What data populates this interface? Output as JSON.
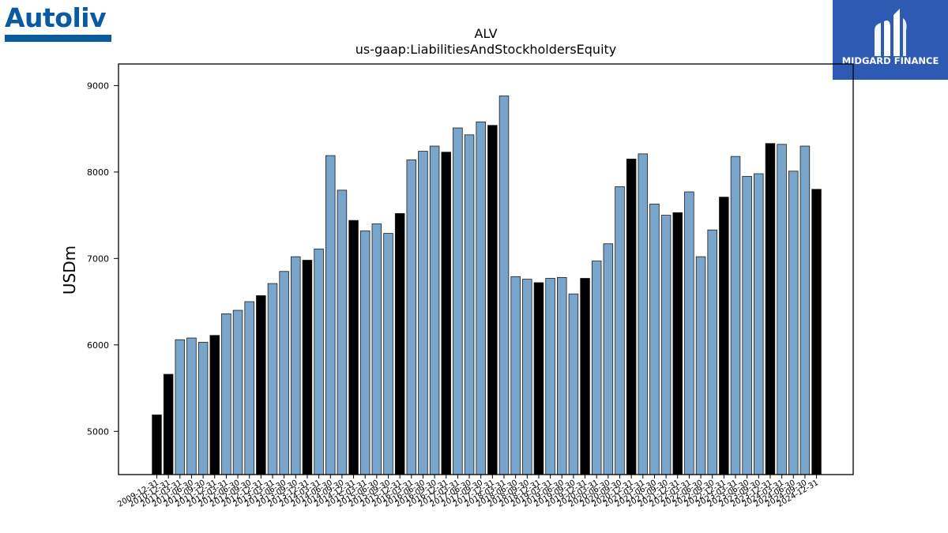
{
  "brand": {
    "company_logo_text": "Autoliv",
    "company_color": "#0a5aa0",
    "publisher_logo_text": "MIDGARD FINANCE",
    "publisher_color": "#2f5ab4"
  },
  "chart_data": {
    "type": "bar",
    "title": "ALV",
    "subtitle": "us-gaap:LiabilitiesAndStockholdersEquity",
    "xlabel": "",
    "ylabel": "USDm",
    "ylim": [
      4500,
      9250
    ],
    "yticks": [
      5000,
      6000,
      7000,
      8000,
      9000
    ],
    "grid": false,
    "colors": {
      "quarter": "#7aa5cb",
      "year_end": "#000000",
      "edge": "#1a1a1a"
    },
    "categories": [
      "2009-12-31",
      "2010-12-31",
      "2011-03-31",
      "2011-06-30",
      "2011-09-30",
      "2011-12-31",
      "2012-03-31",
      "2012-06-30",
      "2012-09-30",
      "2012-12-31",
      "2013-03-31",
      "2013-06-30",
      "2013-09-30",
      "2013-12-31",
      "2014-03-31",
      "2014-06-30",
      "2014-09-30",
      "2014-12-31",
      "2015-03-31",
      "2015-06-30",
      "2015-09-30",
      "2015-12-31",
      "2016-03-31",
      "2016-06-30",
      "2016-09-30",
      "2016-12-31",
      "2017-03-31",
      "2017-06-30",
      "2017-09-30",
      "2017-12-31",
      "2018-03-31",
      "2018-06-30",
      "2018-09-30",
      "2018-12-31",
      "2019-03-31",
      "2019-06-30",
      "2019-09-30",
      "2019-12-31",
      "2020-03-31",
      "2020-06-30",
      "2020-09-30",
      "2020-12-31",
      "2021-03-31",
      "2021-06-30",
      "2021-09-30",
      "2021-12-31",
      "2022-03-31",
      "2022-06-30",
      "2022-09-30",
      "2022-12-31",
      "2023-03-31",
      "2023-06-30",
      "2023-09-30",
      "2023-12-31",
      "2024-03-31",
      "2024-06-30",
      "2024-09-30",
      "2024-12-31"
    ],
    "values": [
      5190,
      5660,
      6060,
      6080,
      6030,
      6110,
      6360,
      6400,
      6500,
      6570,
      6710,
      6850,
      7020,
      6980,
      7110,
      8190,
      7790,
      7440,
      7320,
      7400,
      7290,
      7520,
      8140,
      8240,
      8300,
      8230,
      8510,
      8430,
      8580,
      8540,
      8880,
      6790,
      6760,
      6720,
      6770,
      6780,
      6590,
      6770,
      6970,
      7170,
      7830,
      8150,
      8210,
      7630,
      7500,
      7530,
      7770,
      7020,
      7330,
      7710,
      8180,
      7950,
      7980,
      8330,
      8320,
      8010,
      8300,
      7800
    ],
    "year_end_flags": [
      true,
      true,
      false,
      false,
      false,
      true,
      false,
      false,
      false,
      true,
      false,
      false,
      false,
      true,
      false,
      false,
      false,
      true,
      false,
      false,
      false,
      true,
      false,
      false,
      false,
      true,
      false,
      false,
      false,
      true,
      false,
      false,
      false,
      true,
      false,
      false,
      false,
      true,
      false,
      false,
      false,
      true,
      false,
      false,
      false,
      true,
      false,
      false,
      false,
      true,
      false,
      false,
      false,
      true,
      false,
      false,
      false,
      true
    ]
  }
}
